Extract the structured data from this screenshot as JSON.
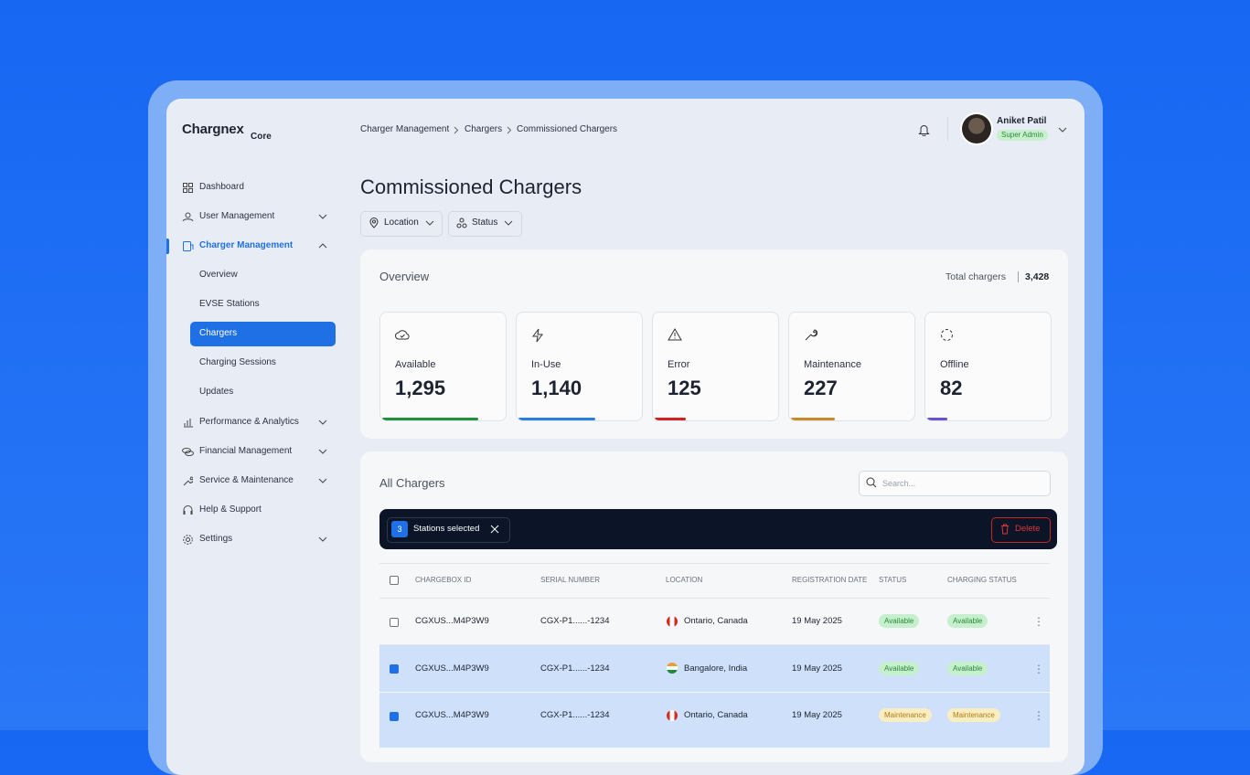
{
  "brand": {
    "name": "Chargnex",
    "suffix": "Core"
  },
  "breadcrumb": [
    "Charger Management",
    "Chargers",
    "Commissioned Chargers"
  ],
  "user": {
    "name": "Aniket Patil",
    "role": "Super Admin"
  },
  "nav": [
    {
      "label": "Dashboard"
    },
    {
      "label": "User Management"
    },
    {
      "label": "Charger Management",
      "children": [
        "Overview",
        "EVSE Stations",
        "Chargers",
        "Charging Sessions",
        "Updates"
      ]
    },
    {
      "label": "Performance & Analytics"
    },
    {
      "label": "Financial Management"
    },
    {
      "label": "Service & Maintenance"
    },
    {
      "label": "Help & Support"
    },
    {
      "label": "Settings"
    }
  ],
  "page_title": "Commissioned Chargers",
  "filters": [
    "Location",
    "Status"
  ],
  "overview": {
    "title": "Overview",
    "total_label": "Total chargers",
    "total": "3,428",
    "cards": [
      {
        "label": "Available",
        "value": "1,295"
      },
      {
        "label": "In-Use",
        "value": "1,140"
      },
      {
        "label": "Error",
        "value": "125"
      },
      {
        "label": "Maintenance",
        "value": "227"
      },
      {
        "label": "Offline",
        "value": "82"
      }
    ]
  },
  "table": {
    "title": "All Chargers",
    "search_placeholder": "Search...",
    "selection": {
      "count": "3",
      "label": "Stations selected",
      "action": "Delete"
    },
    "columns": [
      "CHARGEBOX ID",
      "SERIAL NUMBER",
      "LOCATION",
      "REGISTRATION DATE",
      "STATUS",
      "CHARGING STATUS"
    ],
    "rows": [
      [
        "CGXUS...M4P3W9",
        "CGX-P1......-1234",
        "Ontario, Canada",
        "19 May 2025",
        "Available",
        "Available"
      ],
      [
        "CGXUS...M4P3W9",
        "CGX-P1......-1234",
        "Bangalore, India",
        "19 May 2025",
        "Available",
        "Available"
      ],
      [
        "CGXUS...M4P3W9",
        "CGX-P1......-1234",
        "Ontario, Canada",
        "19 May 2025",
        "Maintenance",
        "Maintenance"
      ]
    ]
  }
}
